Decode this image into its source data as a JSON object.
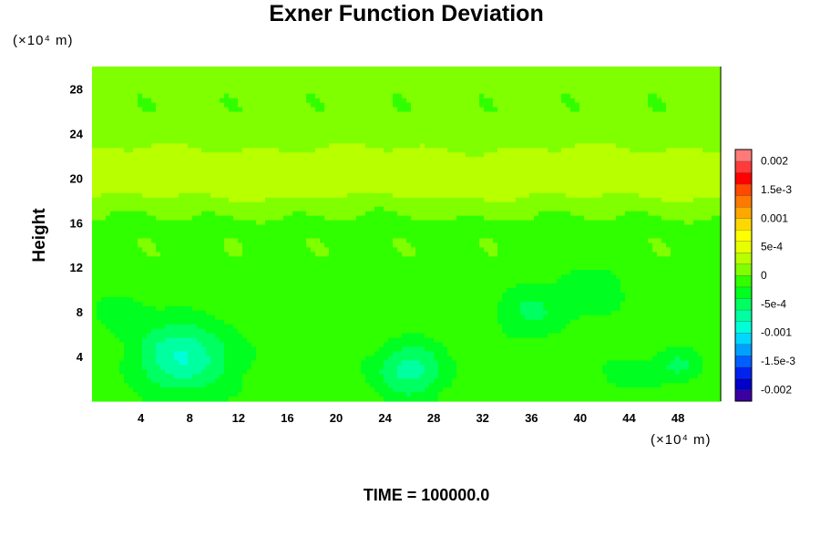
{
  "chart_data": {
    "type": "heatmap",
    "title": "Exner Function Deviation",
    "ylabel": "Height",
    "xlabel": "",
    "x_units": "(×10⁴ m)",
    "y_units": "(×10⁴ m)",
    "xlim": [
      0,
      51.5
    ],
    "ylim": [
      0,
      30
    ],
    "x_ticks": [
      4,
      8,
      12,
      16,
      20,
      24,
      28,
      32,
      36,
      40,
      44,
      48
    ],
    "y_ticks": [
      4,
      8,
      12,
      16,
      20,
      24,
      28
    ],
    "x_tick_labels": [
      "4",
      "8",
      "12",
      "16",
      "20",
      "24",
      "28",
      "32",
      "36",
      "40",
      "44",
      "48"
    ],
    "y_tick_labels": [
      "4",
      "8",
      "12",
      "16",
      "20",
      "24",
      "28"
    ],
    "colorbar": {
      "min": -0.0022,
      "max": 0.0022,
      "labels": [
        "0.002",
        "1.5e-3",
        "0.001",
        "5e-4",
        "0",
        "-5e-4",
        "-0.001",
        "-1.5e-3",
        "-0.002"
      ],
      "label_values": [
        0.002,
        0.0015,
        0.001,
        0.0005,
        0,
        -0.0005,
        -0.001,
        -0.0015,
        -0.002
      ],
      "colors_low_to_high": [
        "#3a00a0",
        "#0000c8",
        "#0022ee",
        "#0060ff",
        "#00a0ff",
        "#00d8ff",
        "#00ffd8",
        "#00ffa0",
        "#00ff60",
        "#00ff20",
        "#30ff00",
        "#80ff00",
        "#b8ff00",
        "#e8ff00",
        "#ffff00",
        "#ffd800",
        "#ffa800",
        "#ff7800",
        "#ff4800",
        "#ff0000",
        "#ff3a3a",
        "#ff7a7a"
      ]
    },
    "field_features": [
      {
        "kind": "band",
        "y": 20,
        "width": 1.6,
        "value": 0.00034
      },
      {
        "kind": "band",
        "y": 22.3,
        "width": 1.2,
        "value": 0.00018
      },
      {
        "kind": "band",
        "y": 18.5,
        "width": 1.5,
        "value": 0.0001
      },
      {
        "kind": "blob",
        "x": 7.5,
        "y": 4,
        "sx": 4,
        "sy": 3.2,
        "value": -0.00072
      },
      {
        "kind": "blob",
        "x": 26,
        "y": 2.8,
        "sx": 3,
        "sy": 2.5,
        "value": -0.00058
      },
      {
        "kind": "blob",
        "x": 36,
        "y": 8,
        "sx": 3,
        "sy": 2.5,
        "value": -0.00035
      },
      {
        "kind": "blob",
        "x": 41,
        "y": 10,
        "sx": 3,
        "sy": 2.5,
        "value": -0.0003
      },
      {
        "kind": "blob",
        "x": 2.5,
        "y": 8,
        "sx": 2.5,
        "sy": 2,
        "value": -0.00025
      },
      {
        "kind": "blob",
        "x": 48,
        "y": 3.2,
        "sx": 2,
        "sy": 1.5,
        "value": -0.00035
      },
      {
        "kind": "blob",
        "x": 44,
        "y": 2.5,
        "sx": 2,
        "sy": 1.5,
        "value": -0.0003
      }
    ],
    "background_value_top": 5e-05,
    "background_value_bottom": -0.0001
  },
  "footer": {
    "time_label": "TIME = 100000.0"
  }
}
